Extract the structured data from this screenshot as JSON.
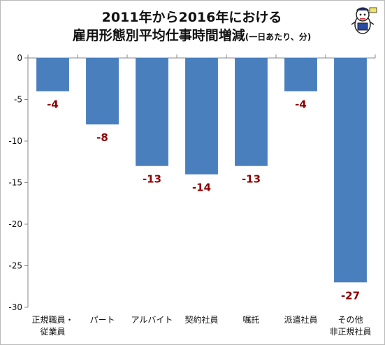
{
  "title_line1": "2011年から2016年における",
  "title_line2": "雇用形態別平均仕事時間増減",
  "title_note": "(一日あたり、分)",
  "bar_color": "#4a7fbd",
  "label_color": "#8b0000",
  "chart_data": {
    "type": "bar",
    "categories": [
      [
        "正規職員・",
        "従業員"
      ],
      [
        "パート"
      ],
      [
        "アルバイト"
      ],
      [
        "契約社員"
      ],
      [
        "嘱託"
      ],
      [
        "派遣社員"
      ],
      [
        "その他",
        "非正規社員"
      ]
    ],
    "values": [
      -4,
      -8,
      -13,
      -14,
      -13,
      -4,
      -27
    ],
    "data_labels": [
      "-4",
      "-8",
      "-13",
      "-14",
      "-13",
      "-4",
      "-27"
    ],
    "ylim": [
      -30,
      0
    ],
    "yticks": [
      0,
      -5,
      -10,
      -15,
      -20,
      -25,
      -30
    ],
    "ytick_labels": [
      "0",
      "-5",
      "-10",
      "-15",
      "-20",
      "-25",
      "-30"
    ],
    "xlabel": "",
    "ylabel": "",
    "grid": false,
    "legend": "none"
  }
}
